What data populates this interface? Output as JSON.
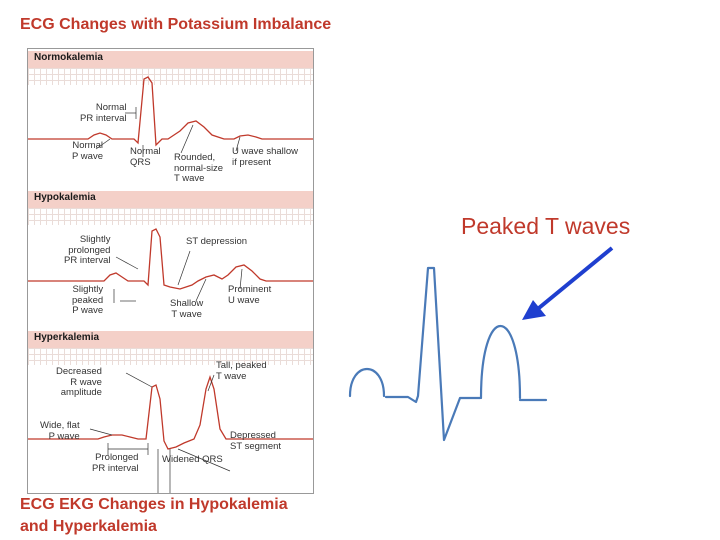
{
  "title": "ECG Changes with Potassium Imbalance",
  "footer": "ECG EKG Changes in Hypokalemia and Hyperkalemia",
  "panels": {
    "normokalemia": {
      "header": "Normokalemia",
      "labels": {
        "pr": "Normal\nPR interval",
        "p": "Normal\nP wave",
        "qrs": "Normal\nQRS",
        "t": "Rounded,\nnormal-size\nT wave",
        "u": "U wave shallow\nif present"
      }
    },
    "hypokalemia": {
      "header": "Hypokalemia",
      "labels": {
        "pr": "Slightly\nprolonged\nPR interval",
        "st": "ST depression",
        "p": "Slightly\npeaked\nP wave",
        "t": "Shallow\nT wave",
        "u": "Prominent\nU wave"
      }
    },
    "hyperkalemia": {
      "header": "Hyperkalemia",
      "labels": {
        "r": "Decreased\nR wave\namplitude",
        "t": "Tall, peaked\nT wave",
        "p": "Wide, flat\nP wave",
        "st": "Depressed\nST segment",
        "pr": "Prolonged\nPR interval",
        "qrs": "Widened QRS"
      }
    }
  },
  "annotation": {
    "label": "Peaked T waves",
    "arrow_color": "#1f3fcf",
    "label_color": "#c0392b"
  },
  "colors": {
    "trace": "#c0392b",
    "big_trace": "#4a7ab8",
    "band": "#f4d0c8"
  }
}
